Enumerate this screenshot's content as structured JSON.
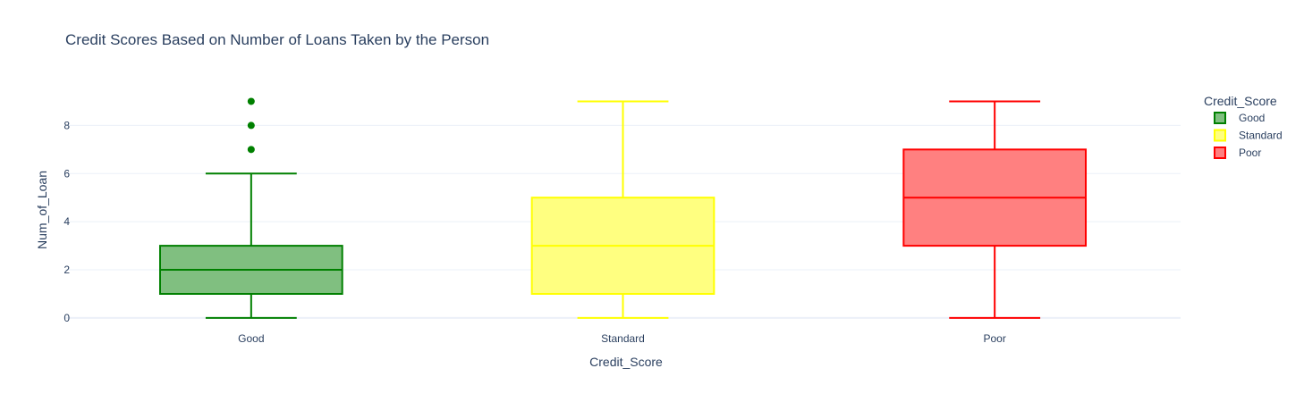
{
  "chart_data": {
    "type": "box",
    "title": "Credit Scores Based on Number of Loans Taken by the Person",
    "xlabel": "Credit_Score",
    "ylabel": "Num_of_Loan",
    "ylim": [
      -0.3,
      9.5
    ],
    "yticks": [
      0,
      2,
      4,
      6,
      8
    ],
    "grid": true,
    "legend": {
      "title": "Credit_Score",
      "position": "top-right"
    },
    "categories": [
      "Good",
      "Standard",
      "Poor"
    ],
    "series": [
      {
        "name": "Good",
        "color": "#008000",
        "fill": "#80bf80",
        "min": 0,
        "q1": 1,
        "median": 2,
        "q3": 3,
        "max": 6,
        "outliers": [
          7,
          8,
          9
        ]
      },
      {
        "name": "Standard",
        "color": "#ffff00",
        "fill": "#ffff80",
        "min": 0,
        "q1": 1,
        "median": 3,
        "q3": 5,
        "max": 9,
        "outliers": []
      },
      {
        "name": "Poor",
        "color": "#ff0000",
        "fill": "#ff8080",
        "min": 0,
        "q1": 3,
        "median": 5,
        "q3": 7,
        "max": 9,
        "outliers": []
      }
    ]
  }
}
